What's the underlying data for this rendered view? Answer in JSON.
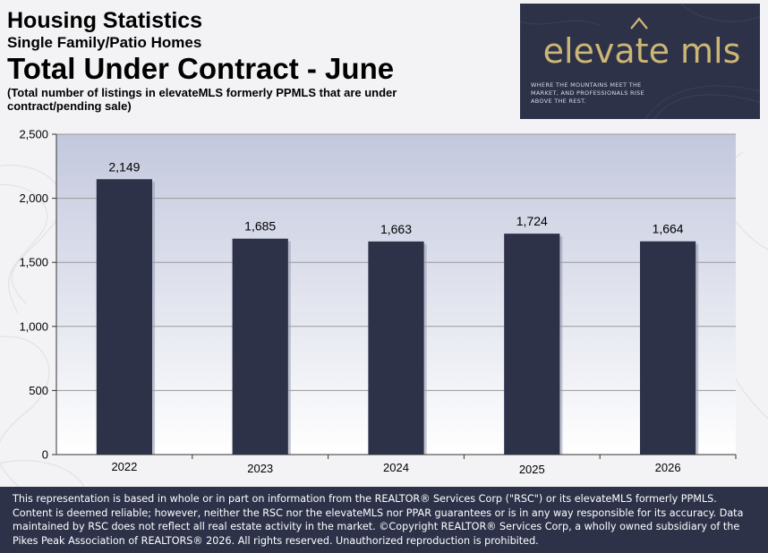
{
  "header": {
    "title": "Housing Statistics",
    "subtitle": "Single Family/Patio Homes",
    "big_title": "Total Under Contract - June",
    "description": "(Total number of listings in elevateMLS formerly PPMLS that are under contract/pending sale)"
  },
  "logo": {
    "wordmark": "elevate mls",
    "tagline": "WHERE THE MOUNTAINS MEET THE MARKET, AND PROFESSIONALS RISE ABOVE THE REST.",
    "icon": "mountain-chevron-icon"
  },
  "colors": {
    "bar": "#2d3249",
    "plot_top": "#c6cbe0",
    "plot_bottom": "#ffffff",
    "gridline": "#9a9a9a",
    "logo_bg": "#2d3249",
    "logo_gold": "#cdb674",
    "footer_bg": "#2d3249"
  },
  "chart_data": {
    "type": "bar",
    "categories": [
      "2022",
      "2023",
      "2024",
      "2025",
      "2026"
    ],
    "values": [
      2149,
      1685,
      1663,
      1724,
      1664
    ],
    "value_labels": [
      "2,149",
      "1,685",
      "1,663",
      "1,724",
      "1,664"
    ],
    "ylim": [
      0,
      2500
    ],
    "yticks": [
      0,
      500,
      1000,
      1500,
      2000,
      2500
    ],
    "ytick_labels": [
      "0",
      "500",
      "1,000",
      "1,500",
      "2,000",
      "2,500"
    ],
    "grid": true,
    "legend": "none"
  },
  "footer": {
    "text": "This representation is based in whole or in part on information from the REALTOR® Services Corp  (\"RSC\") or its elevateMLS formerly PPMLS. Content is deemed reliable; however, neither the RSC nor the elevateMLS nor PPAR guarantees or is in any way responsible for its accuracy. Data maintained by RSC does not reflect all real estate activity in the market.  ©Copyright REALTOR® Services Corp, a wholly owned subsidiary of the Pikes Peak Association of REALTORS® 2026. All rights reserved. Unauthorized reproduction is prohibited."
  }
}
